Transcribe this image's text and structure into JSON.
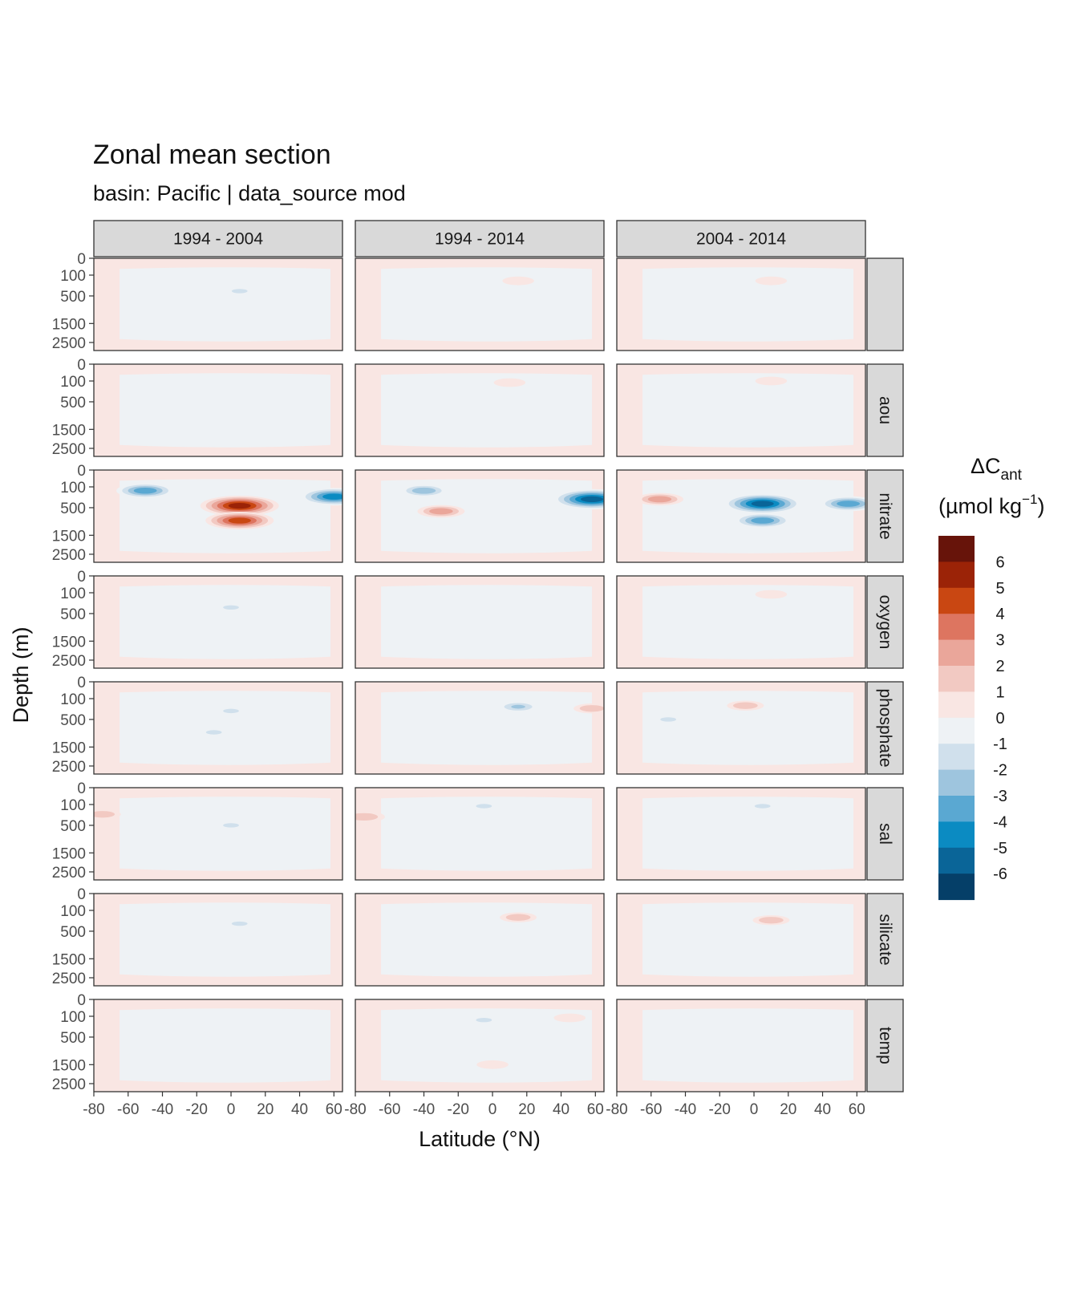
{
  "chart_data": {
    "type": "heatmap",
    "title": "Zonal mean section",
    "subtitle": "basin: Pacific | data_source mod",
    "xlabel": "Latitude (°N)",
    "ylabel": "Depth (m)",
    "xlim": [
      -80,
      65
    ],
    "x_ticks": [
      -80,
      -60,
      -40,
      -20,
      0,
      20,
      40,
      60
    ],
    "x_tick_labels": [
      "-80",
      "-60",
      "-40",
      "-20",
      "0",
      "20",
      "40",
      "60"
    ],
    "ylim": [
      0,
      3000
    ],
    "y_ticks": [
      0,
      100,
      500,
      1500,
      2500
    ],
    "y_tick_labels": [
      "0",
      "100",
      "500",
      "1500",
      "2500"
    ],
    "y_scale": "sqrt (reversed)",
    "column_facets": [
      "1994 - 2004",
      "1994 - 2014",
      "2004 - 2014"
    ],
    "row_facets": [
      "",
      "aou",
      "nitrate",
      "oxygen",
      "phosphate",
      "sal",
      "silicate",
      "temp"
    ],
    "legend": {
      "title_main": "ΔC",
      "title_sub": "ant",
      "unit_line": "(µmol kg",
      "unit_sup": "−1",
      "unit_end": ")",
      "position": "right",
      "bins": [
        {
          "upper": 7,
          "lower": 6,
          "color": "#67140a"
        },
        {
          "upper": 6,
          "lower": 5,
          "color": "#9b2307"
        },
        {
          "upper": 5,
          "lower": 4,
          "color": "#c94712"
        },
        {
          "upper": 4,
          "lower": 3,
          "color": "#dd7560"
        },
        {
          "upper": 3,
          "lower": 2,
          "color": "#eaa69a"
        },
        {
          "upper": 2,
          "lower": 1,
          "color": "#f2c9c2"
        },
        {
          "upper": 1,
          "lower": 0,
          "color": "#f9e6e3"
        },
        {
          "upper": 0,
          "lower": -1,
          "color": "#eef2f5"
        },
        {
          "upper": -1,
          "lower": -2,
          "color": "#d0e0ec"
        },
        {
          "upper": -2,
          "lower": -3,
          "color": "#9ec5de"
        },
        {
          "upper": -3,
          "lower": -4,
          "color": "#5aa8d2"
        },
        {
          "upper": -4,
          "lower": -5,
          "color": "#0b8bc2"
        },
        {
          "upper": -5,
          "lower": -6,
          "color": "#0a6598"
        },
        {
          "upper": -6,
          "lower": -7,
          "color": "#053f68"
        }
      ],
      "tick_labels": [
        "6",
        "5",
        "4",
        "3",
        "2",
        "1",
        "0",
        "-1",
        "-2",
        "-3",
        "-4",
        "-5",
        "-6"
      ]
    },
    "features": [
      {
        "row": 0,
        "col": 0,
        "lat": 5,
        "depth": 380,
        "value": -1.5
      },
      {
        "row": 0,
        "col": 1,
        "lat": 15,
        "depth": 180,
        "value": 1.5
      },
      {
        "row": 0,
        "col": 2,
        "lat": 10,
        "depth": 180,
        "value": 1.5
      },
      {
        "row": 1,
        "col": 1,
        "lat": 10,
        "depth": 120,
        "value": 1.5
      },
      {
        "row": 1,
        "col": 2,
        "lat": 10,
        "depth": 100,
        "value": 1.5
      },
      {
        "row": 2,
        "col": 0,
        "lat": 5,
        "depth": 450,
        "value": 6
      },
      {
        "row": 2,
        "col": 0,
        "lat": 5,
        "depth": 900,
        "value": 5
      },
      {
        "row": 2,
        "col": 0,
        "lat": -50,
        "depth": 150,
        "value": -4
      },
      {
        "row": 2,
        "col": 0,
        "lat": 60,
        "depth": 250,
        "value": -5
      },
      {
        "row": 2,
        "col": 1,
        "lat": -30,
        "depth": 600,
        "value": 3
      },
      {
        "row": 2,
        "col": 1,
        "lat": -40,
        "depth": 150,
        "value": -3
      },
      {
        "row": 2,
        "col": 1,
        "lat": 58,
        "depth": 300,
        "value": -6
      },
      {
        "row": 2,
        "col": 2,
        "lat": 5,
        "depth": 400,
        "value": -6
      },
      {
        "row": 2,
        "col": 2,
        "lat": 5,
        "depth": 900,
        "value": -4
      },
      {
        "row": 2,
        "col": 2,
        "lat": -55,
        "depth": 300,
        "value": 3
      },
      {
        "row": 2,
        "col": 2,
        "lat": 55,
        "depth": 400,
        "value": -4
      },
      {
        "row": 3,
        "col": 0,
        "lat": 0,
        "depth": 350,
        "value": -1.5
      },
      {
        "row": 3,
        "col": 2,
        "lat": 10,
        "depth": 120,
        "value": 1.5
      },
      {
        "row": 4,
        "col": 0,
        "lat": 0,
        "depth": 300,
        "value": -1.5
      },
      {
        "row": 4,
        "col": 0,
        "lat": -10,
        "depth": 900,
        "value": -1.5
      },
      {
        "row": 4,
        "col": 1,
        "lat": 15,
        "depth": 220,
        "value": -2.5
      },
      {
        "row": 4,
        "col": 1,
        "lat": 58,
        "depth": 250,
        "value": 2
      },
      {
        "row": 4,
        "col": 2,
        "lat": -5,
        "depth": 200,
        "value": 2
      },
      {
        "row": 4,
        "col": 2,
        "lat": -50,
        "depth": 500,
        "value": -1.5
      },
      {
        "row": 5,
        "col": 0,
        "lat": -75,
        "depth": 250,
        "value": 2
      },
      {
        "row": 5,
        "col": 0,
        "lat": 0,
        "depth": 500,
        "value": -1.5
      },
      {
        "row": 5,
        "col": 1,
        "lat": -75,
        "depth": 300,
        "value": 2.5
      },
      {
        "row": 5,
        "col": 1,
        "lat": -5,
        "depth": 120,
        "value": -1.5
      },
      {
        "row": 5,
        "col": 2,
        "lat": 5,
        "depth": 120,
        "value": -1.5
      },
      {
        "row": 6,
        "col": 0,
        "lat": 5,
        "depth": 320,
        "value": -1.5
      },
      {
        "row": 6,
        "col": 1,
        "lat": 15,
        "depth": 200,
        "value": 2
      },
      {
        "row": 6,
        "col": 2,
        "lat": 10,
        "depth": 250,
        "value": 2
      },
      {
        "row": 7,
        "col": 1,
        "lat": 45,
        "depth": 120,
        "value": 1.5
      },
      {
        "row": 7,
        "col": 1,
        "lat": -5,
        "depth": 150,
        "value": -1.5
      },
      {
        "row": 7,
        "col": 1,
        "lat": 0,
        "depth": 1500,
        "value": 1.5
      }
    ]
  }
}
